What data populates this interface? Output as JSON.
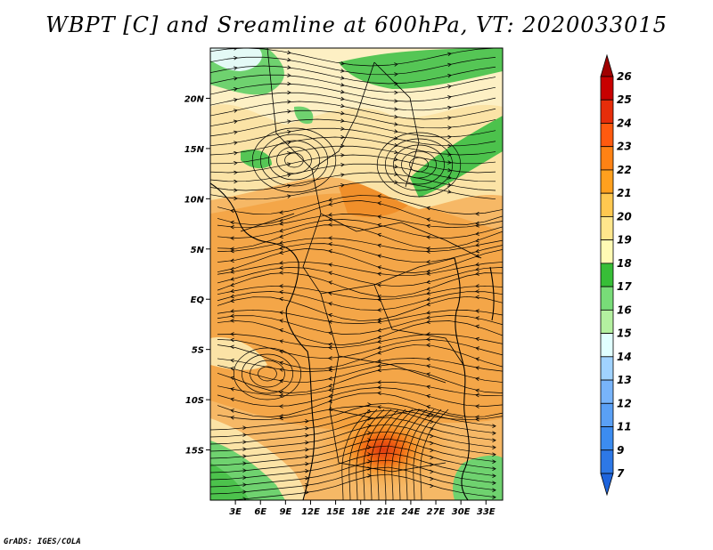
{
  "title": "WBPT [C] and Sreamline at 600hPa, VT: 2020033015",
  "footer": "GrADS: IGES/COLA",
  "map": {
    "lon_range": [
      0,
      35
    ],
    "lat_range": [
      -20,
      25
    ],
    "lat_ticks": [
      {
        "value": 20,
        "label": "20N"
      },
      {
        "value": 15,
        "label": "15N"
      },
      {
        "value": 10,
        "label": "10N"
      },
      {
        "value": 5,
        "label": "5N"
      },
      {
        "value": 0,
        "label": "EQ"
      },
      {
        "value": -5,
        "label": "5S"
      },
      {
        "value": -10,
        "label": "10S"
      },
      {
        "value": -15,
        "label": "15S"
      }
    ],
    "lon_ticks": [
      {
        "value": 3,
        "label": "3E"
      },
      {
        "value": 6,
        "label": "6E"
      },
      {
        "value": 9,
        "label": "9E"
      },
      {
        "value": 12,
        "label": "12E"
      },
      {
        "value": 15,
        "label": "15E"
      },
      {
        "value": 18,
        "label": "18E"
      },
      {
        "value": 21,
        "label": "21E"
      },
      {
        "value": 24,
        "label": "24E"
      },
      {
        "value": 27,
        "label": "27E"
      },
      {
        "value": 30,
        "label": "30E"
      },
      {
        "value": 33,
        "label": "33E"
      }
    ]
  },
  "colorbar": {
    "levels": [
      "7",
      "9",
      "11",
      "12",
      "13",
      "14",
      "15",
      "16",
      "17",
      "18",
      "19",
      "20",
      "21",
      "22",
      "23",
      "24",
      "25",
      "26"
    ],
    "colors": [
      "#1e64dc",
      "#2d78e6",
      "#3c8cf0",
      "#5aa0f5",
      "#78b4fa",
      "#a0d2ff",
      "#e1ffff",
      "#b4f0a0",
      "#78dc78",
      "#37be37",
      "#fffab4",
      "#ffe68c",
      "#ffc850",
      "#ffa01e",
      "#ff8214",
      "#ff5a0f",
      "#e62d0a",
      "#c80000",
      "#a00000"
    ]
  }
}
